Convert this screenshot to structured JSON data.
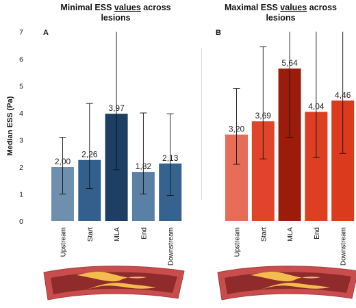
{
  "chart_data": [
    {
      "type": "bar",
      "panel_label": "A",
      "title_parts": [
        "Minimal ESS ",
        "values",
        " across lesions"
      ],
      "ylabel": "Median ESS (Pa)",
      "ylim": [
        0,
        7
      ],
      "yticks": [
        "0",
        "1",
        "2",
        "3",
        "4",
        "5",
        "6",
        "7"
      ],
      "categories": [
        "Upstream",
        "Start",
        "MLA",
        "End",
        "Downstream"
      ],
      "values": [
        2.0,
        2.26,
        3.97,
        1.82,
        2.13
      ],
      "value_labels": [
        "2,00",
        "2,26",
        "3,97",
        "1,82",
        "2,13"
      ],
      "error_low": [
        1.0,
        1.2,
        1.9,
        1.0,
        0.95
      ],
      "error_high": [
        3.1,
        4.35,
        7.0,
        4.0,
        3.97
      ],
      "colors": [
        "#6e8fae",
        "#335f8c",
        "#1c3f63",
        "#5a80a6",
        "#36628f"
      ],
      "grid": false
    },
    {
      "type": "bar",
      "panel_label": "B",
      "title_parts": [
        "Maximal ESS ",
        "values",
        " across lesions"
      ],
      "ylim": [
        0,
        7
      ],
      "categories": [
        "Upstream",
        "Start",
        "MLA",
        "End",
        "Downstream"
      ],
      "values": [
        3.2,
        3.69,
        5.64,
        4.04,
        4.46
      ],
      "value_labels": [
        "3,20",
        "3,69",
        "5,64",
        "4,04",
        "4,46"
      ],
      "error_low": [
        2.1,
        2.3,
        3.1,
        2.35,
        2.5
      ],
      "error_high": [
        4.9,
        6.45,
        7.0,
        7.0,
        7.0
      ],
      "colors": [
        "#e76d58",
        "#e0452c",
        "#9c1c0c",
        "#de3f22",
        "#db3a1c"
      ],
      "grid": false
    }
  ],
  "artery_diagram": {
    "wall_color": "#c94d4d",
    "lumen_color": "#8f2b2b",
    "plaque_color": "#f2bd4d"
  }
}
